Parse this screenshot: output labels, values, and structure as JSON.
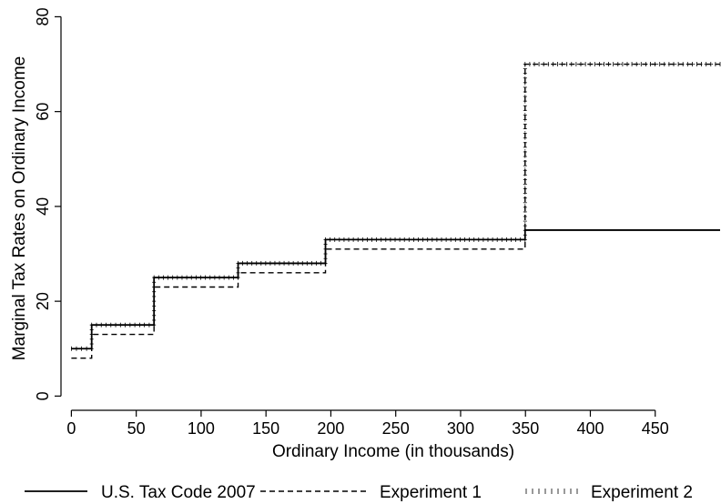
{
  "chart_data": {
    "type": "line",
    "title": "",
    "xlabel": "Ordinary Income (in thousands)",
    "ylabel": "Marginal Tax Rates on Ordinary Income",
    "xlim": [
      -8,
      500
    ],
    "ylim": [
      -3,
      82
    ],
    "x_ticks": [
      0,
      50,
      100,
      150,
      200,
      250,
      300,
      350,
      400,
      450
    ],
    "y_ticks": [
      0,
      20,
      40,
      60,
      80
    ],
    "grid": false,
    "legend_position": "bottom",
    "series": [
      {
        "name": "U.S. Tax Code 2007",
        "style": "solid",
        "color": "#000000",
        "x": [
          0,
          15.65,
          63.7,
          128.5,
          195.85,
          349.7,
          500
        ],
        "y": [
          10,
          15,
          25,
          28,
          33,
          35,
          35
        ]
      },
      {
        "name": "Experiment 1",
        "style": "dashed",
        "color": "#000000",
        "x": [
          0,
          15.65,
          63.7,
          128.5,
          195.85,
          349.7,
          500
        ],
        "y": [
          8,
          13,
          23,
          26,
          31,
          70,
          70
        ]
      },
      {
        "name": "Experiment 2",
        "style": "dotted-ticks",
        "color": "#000000",
        "x": [
          0,
          15.65,
          63.7,
          128.5,
          195.85,
          349.7,
          500
        ],
        "y": [
          10,
          15,
          25,
          28,
          33,
          70,
          70
        ]
      }
    ]
  }
}
